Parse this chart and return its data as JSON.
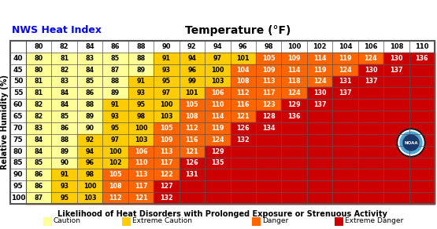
{
  "title_left": "NWS Heat Index",
  "title_center": "Temperature (°F)",
  "ylabel": "Relative Humidity (%)",
  "xlabel": "Likelihood of Heat Disorders with Prolonged Exposure or Strenuous Activity",
  "temp_cols": [
    80,
    82,
    84,
    86,
    88,
    90,
    92,
    94,
    96,
    98,
    100,
    102,
    104,
    106,
    108,
    110
  ],
  "rh_rows": [
    40,
    45,
    50,
    55,
    60,
    65,
    70,
    75,
    80,
    85,
    90,
    95,
    100
  ],
  "table_data": [
    [
      80,
      81,
      83,
      85,
      88,
      91,
      94,
      97,
      101,
      105,
      109,
      114,
      119,
      124,
      130,
      136
    ],
    [
      80,
      82,
      84,
      87,
      89,
      93,
      96,
      100,
      104,
      109,
      114,
      119,
      124,
      130,
      137,
      null
    ],
    [
      81,
      83,
      85,
      88,
      91,
      95,
      99,
      103,
      108,
      113,
      118,
      124,
      131,
      137,
      null,
      null
    ],
    [
      81,
      84,
      86,
      89,
      93,
      97,
      101,
      106,
      112,
      117,
      124,
      130,
      137,
      null,
      null,
      null
    ],
    [
      82,
      84,
      88,
      91,
      95,
      100,
      105,
      110,
      116,
      123,
      129,
      137,
      null,
      null,
      null,
      null
    ],
    [
      82,
      85,
      89,
      93,
      98,
      103,
      108,
      114,
      121,
      128,
      136,
      null,
      null,
      null,
      null,
      null
    ],
    [
      83,
      86,
      90,
      95,
      100,
      105,
      112,
      119,
      126,
      134,
      null,
      null,
      null,
      null,
      null,
      null
    ],
    [
      84,
      88,
      92,
      97,
      103,
      109,
      116,
      124,
      132,
      null,
      null,
      null,
      null,
      null,
      null,
      null
    ],
    [
      84,
      89,
      94,
      100,
      106,
      113,
      121,
      129,
      null,
      null,
      null,
      null,
      null,
      null,
      null,
      null
    ],
    [
      85,
      90,
      96,
      102,
      110,
      117,
      126,
      135,
      null,
      null,
      null,
      null,
      null,
      null,
      null,
      null
    ],
    [
      86,
      91,
      98,
      105,
      113,
      122,
      131,
      null,
      null,
      null,
      null,
      null,
      null,
      null,
      null,
      null
    ],
    [
      86,
      93,
      100,
      108,
      117,
      127,
      null,
      null,
      null,
      null,
      null,
      null,
      null,
      null,
      null,
      null
    ],
    [
      87,
      95,
      103,
      112,
      121,
      132,
      null,
      null,
      null,
      null,
      null,
      null,
      null,
      null,
      null,
      null
    ]
  ],
  "caution_color": "#FFFF99",
  "extreme_caution_color": "#FFCC00",
  "danger_color": "#FF6600",
  "extreme_danger_color": "#CC0000",
  "border_color": "#555555",
  "legend_items": [
    {
      "label": "Caution",
      "color": "#FFFF99"
    },
    {
      "label": "Extreme Caution",
      "color": "#FFCC00"
    },
    {
      "label": "Danger",
      "color": "#FF6600"
    },
    {
      "label": "Extreme Danger",
      "color": "#CC0000"
    }
  ]
}
